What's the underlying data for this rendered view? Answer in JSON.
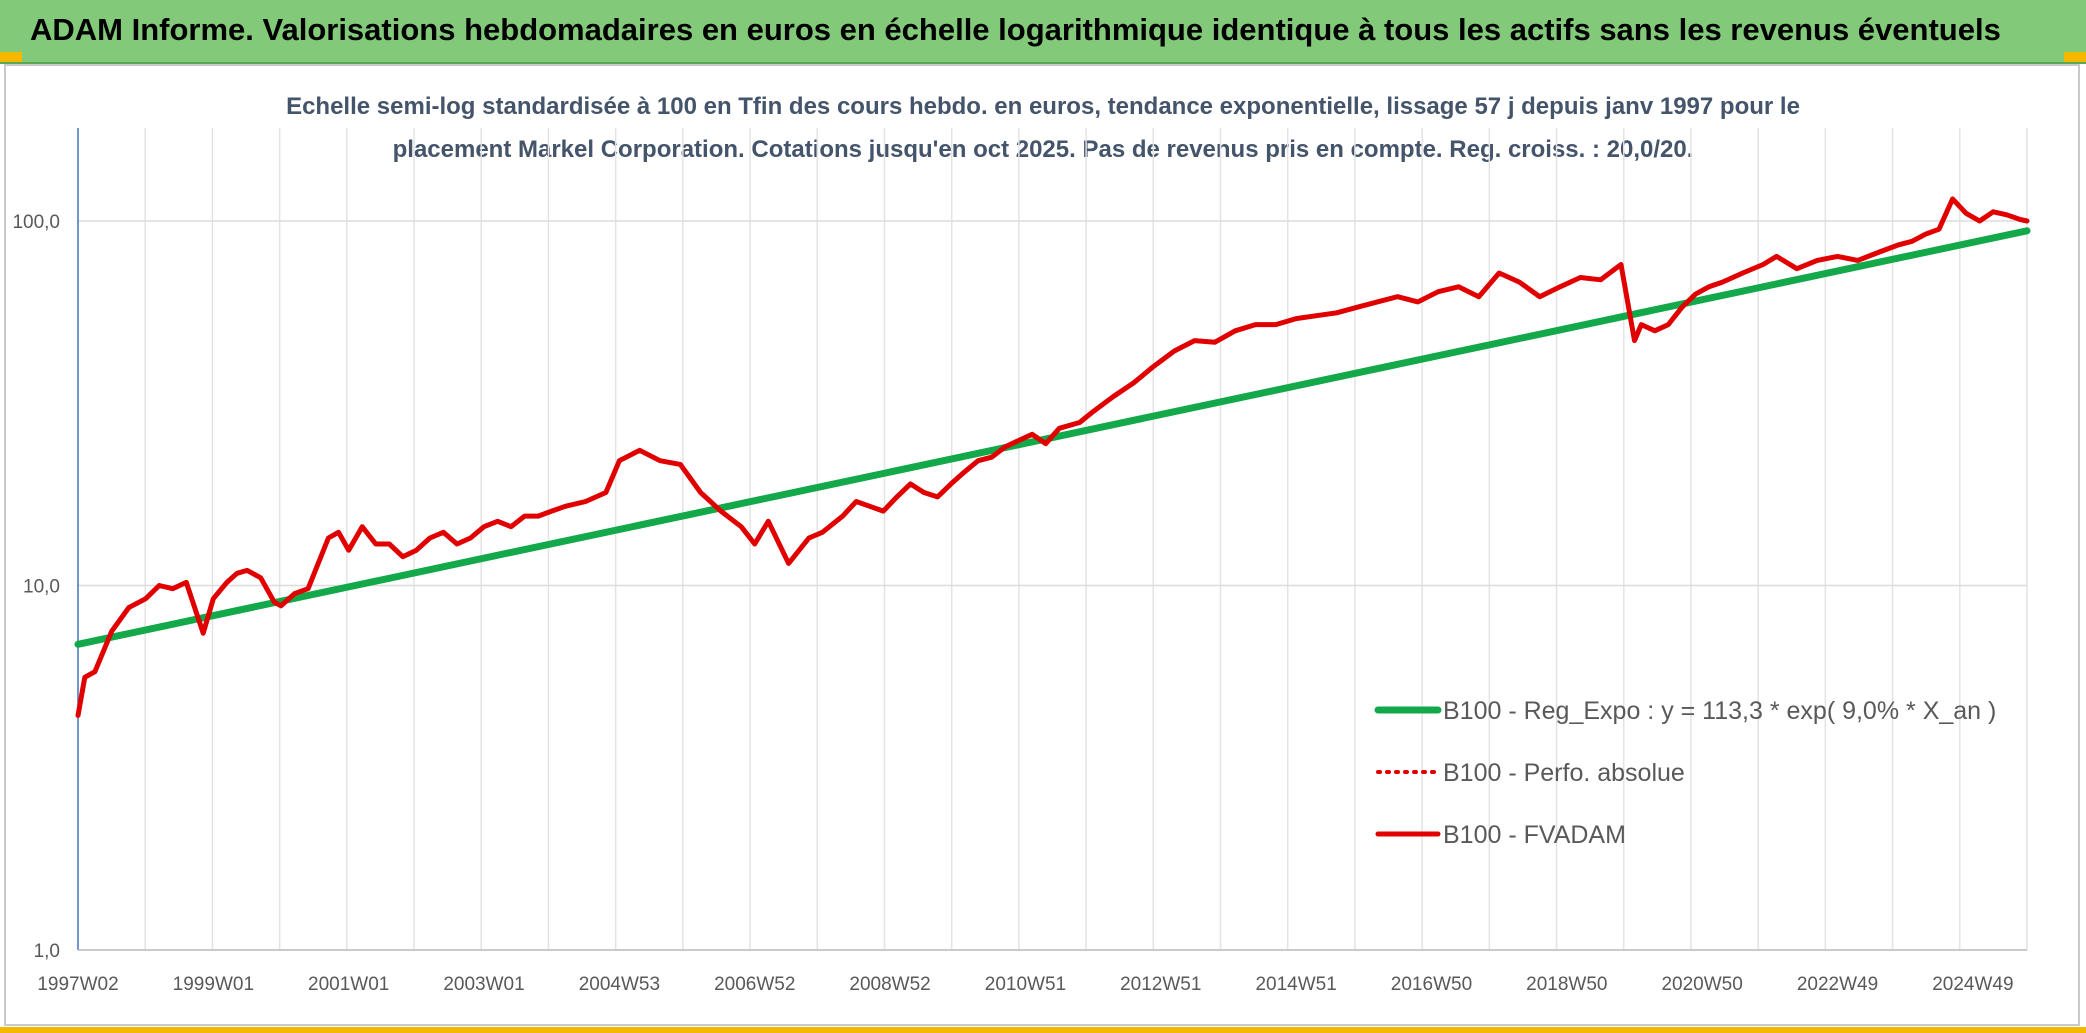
{
  "header": {
    "title": "ADAM Informe. Valorisations hebdomadaires en euros en échelle logarithmique identique à tous les actifs sans les revenus éventuels"
  },
  "chart_data": {
    "type": "line",
    "title_lines": [
      "Echelle semi-log standardisée à 100 en Tfin des cours hebdo. en euros, tendance exponentielle, lissage 57 j depuis janv 1997 pour le",
      "placement Markel Corporation. Cotations jusqu'en oct 2025. Pas de revenus pris en compte. Reg. croiss. : 20,0/20."
    ],
    "y_scale": "log",
    "ylim": [
      1,
      180
    ],
    "yticks": [
      1,
      10,
      100
    ],
    "ytick_labels": [
      "1,0",
      "10,0",
      "100,0"
    ],
    "xlim": [
      1997.0,
      2025.8
    ],
    "xticks": [
      1997.0,
      1999.0,
      2001.0,
      2003.0,
      2005.0,
      2007.0,
      2009.0,
      2011.0,
      2013.0,
      2015.0,
      2017.0,
      2019.0,
      2021.0,
      2023.0,
      2025.0
    ],
    "xtick_labels": [
      "1997W02",
      "1999W01",
      "2001W01",
      "2003W01",
      "2004W53",
      "2006W52",
      "2008W52",
      "2010W51",
      "2012W51",
      "2014W51",
      "2016W50",
      "2018W50",
      "2020W50",
      "2022W49",
      "2024W49"
    ],
    "grid": true,
    "legend_position": "bottom-right",
    "series": [
      {
        "name": "B100 - Reg_Expo : y = 113,3 * exp( 9,0% *  X_an )",
        "style": "solid-thick",
        "color": "#13a84a",
        "x": [
          1997.0,
          2025.8
        ],
        "values": [
          6.9,
          94
        ]
      },
      {
        "name": "B100 - Perfo. absolue",
        "style": "dotted",
        "color": "#e10000",
        "x": [],
        "values": []
      },
      {
        "name": "B100 - FVADAM",
        "style": "solid",
        "color": "#e10000",
        "x": [
          1997.0,
          1997.1,
          1997.25,
          1997.5,
          1997.75,
          1998.0,
          1998.2,
          1998.4,
          1998.6,
          1998.85,
          1999.0,
          1999.2,
          1999.35,
          1999.5,
          1999.7,
          1999.9,
          2000.0,
          2000.2,
          2000.4,
          2000.55,
          2000.7,
          2000.85,
          2001.0,
          2001.2,
          2001.4,
          2001.6,
          2001.8,
          2002.0,
          2002.2,
          2002.4,
          2002.6,
          2002.8,
          2003.0,
          2003.2,
          2003.4,
          2003.6,
          2003.8,
          2004.0,
          2004.2,
          2004.5,
          2004.8,
          2005.0,
          2005.3,
          2005.6,
          2005.9,
          2006.2,
          2006.5,
          2006.8,
          2007.0,
          2007.2,
          2007.5,
          2007.8,
          2008.0,
          2008.3,
          2008.5,
          2008.7,
          2008.9,
          2009.1,
          2009.3,
          2009.5,
          2009.7,
          2009.9,
          2010.1,
          2010.3,
          2010.5,
          2010.7,
          2010.9,
          2011.1,
          2011.3,
          2011.5,
          2011.8,
          2012.0,
          2012.3,
          2012.6,
          2012.9,
          2013.2,
          2013.5,
          2013.8,
          2014.1,
          2014.4,
          2014.7,
          2015.0,
          2015.3,
          2015.6,
          2015.9,
          2016.2,
          2016.5,
          2016.8,
          2017.1,
          2017.4,
          2017.7,
          2018.0,
          2018.3,
          2018.6,
          2018.9,
          2019.2,
          2019.5,
          2019.8,
          2020.0,
          2020.1,
          2020.3,
          2020.5,
          2020.7,
          2020.9,
          2021.1,
          2021.3,
          2021.6,
          2021.9,
          2022.1,
          2022.4,
          2022.7,
          2023.0,
          2023.3,
          2023.6,
          2023.9,
          2024.1,
          2024.3,
          2024.5,
          2024.7,
          2024.9,
          2025.1,
          2025.3,
          2025.5,
          2025.7,
          2025.8
        ],
        "values": [
          4.4,
          5.6,
          5.8,
          7.5,
          8.7,
          9.2,
          10.0,
          9.8,
          10.2,
          7.4,
          9.2,
          10.2,
          10.8,
          11.0,
          10.5,
          9.0,
          8.8,
          9.5,
          9.8,
          11.5,
          13.5,
          14.0,
          12.5,
          14.5,
          13.0,
          13.0,
          12.0,
          12.5,
          13.5,
          14.0,
          13.0,
          13.5,
          14.5,
          15.0,
          14.5,
          15.5,
          15.5,
          16.0,
          16.5,
          17.0,
          18.0,
          22.0,
          23.5,
          22.0,
          21.5,
          18.0,
          16.0,
          14.5,
          13.0,
          15.0,
          11.5,
          13.5,
          14.0,
          15.5,
          17.0,
          16.5,
          16.0,
          17.5,
          19.0,
          18.0,
          17.5,
          19.0,
          20.5,
          22.0,
          22.5,
          24.0,
          25.0,
          26.0,
          24.5,
          27.0,
          28.0,
          30.0,
          33.0,
          36.0,
          40.0,
          44.0,
          47.0,
          46.5,
          50.0,
          52.0,
          52.0,
          54.0,
          55.0,
          56.0,
          58.0,
          60.0,
          62.0,
          60.0,
          64.0,
          66.0,
          62.0,
          72.0,
          68.0,
          62.0,
          66.0,
          70.0,
          69.0,
          76.0,
          47.0,
          52.0,
          50.0,
          52.0,
          58.0,
          63.0,
          66.0,
          68.0,
          72.0,
          76.0,
          80.0,
          74.0,
          78.0,
          80.0,
          78.0,
          82.0,
          86.0,
          88.0,
          92.0,
          95.0,
          115.0,
          105.0,
          100.0,
          106.0,
          104.0,
          101.0,
          100.0
        ]
      }
    ]
  }
}
